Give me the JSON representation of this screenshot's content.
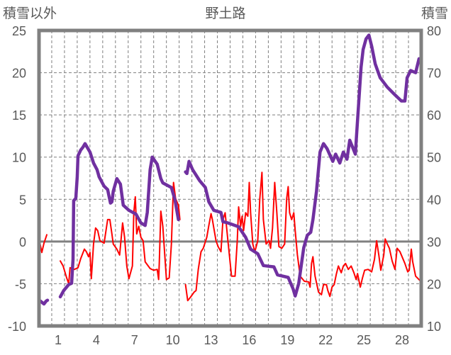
{
  "chart_data": {
    "type": "line",
    "title": "野土路",
    "ylabel": "積雪以外",
    "y2label": "積雪",
    "xlim": [
      -0.5,
      29.5
    ],
    "ylim": [
      -10,
      25
    ],
    "y2lim": [
      10,
      80
    ],
    "grid": true,
    "x_ticks": [
      1,
      4,
      7,
      10,
      13,
      16,
      19,
      22,
      25,
      28
    ],
    "y_ticks": [
      25,
      20,
      15,
      10,
      5,
      0,
      -5,
      -10
    ],
    "y2_ticks": [
      80,
      70,
      60,
      50,
      40,
      30,
      20,
      10
    ],
    "colors": {
      "snow": "#7030a0",
      "other": "#ff0000",
      "axis": "#808080",
      "grid": "#7f7f7f"
    },
    "series": [
      {
        "name": "積雪",
        "axis": "right",
        "segments": [
          [
            [
              -0.39,
              15.9
            ],
            [
              -0.11,
              15.2
            ],
            [
              0.06,
              15.9
            ],
            [
              0.17,
              16.1
            ]
          ],
          [
            [
              1.17,
              16.9
            ],
            [
              1.44,
              18.4
            ],
            [
              1.83,
              19.8
            ],
            [
              2.06,
              20.1
            ],
            [
              2.17,
              25.8
            ],
            [
              2.22,
              39.7
            ],
            [
              2.39,
              40.2
            ],
            [
              2.5,
              45.3
            ],
            [
              2.56,
              50.3
            ],
            [
              2.78,
              51.7
            ],
            [
              2.94,
              52.3
            ],
            [
              3.11,
              53.2
            ],
            [
              3.5,
              51.2
            ],
            [
              3.78,
              48.6
            ],
            [
              4.06,
              47.0
            ],
            [
              4.22,
              45.3
            ],
            [
              4.61,
              43.1
            ],
            [
              4.89,
              42.3
            ],
            [
              5.11,
              39.1
            ],
            [
              5.22,
              39.4
            ],
            [
              5.33,
              41.9
            ],
            [
              5.61,
              44.9
            ],
            [
              5.89,
              43.6
            ],
            [
              6.11,
              38.6
            ],
            [
              6.56,
              37.4
            ],
            [
              7.11,
              36.5
            ],
            [
              7.5,
              34.4
            ],
            [
              7.83,
              33.8
            ],
            [
              8.0,
              36.9
            ],
            [
              8.22,
              47.0
            ],
            [
              8.39,
              50.0
            ],
            [
              8.78,
              48.3
            ],
            [
              9.06,
              44.9
            ],
            [
              9.22,
              43.9
            ],
            [
              9.89,
              42.8
            ],
            [
              10.17,
              39.9
            ],
            [
              10.44,
              35.2
            ]
          ],
          [
            [
              11.0,
              46.5
            ],
            [
              11.11,
              46.1
            ],
            [
              11.28,
              49.0
            ],
            [
              11.56,
              47.0
            ],
            [
              12.11,
              44.4
            ],
            [
              12.56,
              42.8
            ],
            [
              12.83,
              39.4
            ],
            [
              13.22,
              37.4
            ],
            [
              13.78,
              36.9
            ],
            [
              13.94,
              34.7
            ],
            [
              14.33,
              34.4
            ],
            [
              15.17,
              33.5
            ],
            [
              15.72,
              31.0
            ],
            [
              16.11,
              28.2
            ],
            [
              16.67,
              27.1
            ],
            [
              17.11,
              24.3
            ],
            [
              17.94,
              24.0
            ],
            [
              18.22,
              22.1
            ],
            [
              19.06,
              21.5
            ],
            [
              19.44,
              18.8
            ],
            [
              19.61,
              17.1
            ],
            [
              19.89,
              20.1
            ],
            [
              20.28,
              28.5
            ],
            [
              20.56,
              31.5
            ],
            [
              20.83,
              32.2
            ],
            [
              21.0,
              35.2
            ],
            [
              21.28,
              41.9
            ],
            [
              21.56,
              51.2
            ],
            [
              21.83,
              53.2
            ],
            [
              22.11,
              52.0
            ],
            [
              22.56,
              49.0
            ],
            [
              22.78,
              50.7
            ],
            [
              23.11,
              48.6
            ],
            [
              23.39,
              51.2
            ],
            [
              23.67,
              49.5
            ],
            [
              23.89,
              54.0
            ],
            [
              24.33,
              50.7
            ],
            [
              24.5,
              58.7
            ],
            [
              24.78,
              71.3
            ],
            [
              24.94,
              75.5
            ],
            [
              25.17,
              78.0
            ],
            [
              25.39,
              78.9
            ],
            [
              25.61,
              76.3
            ],
            [
              25.89,
              72.1
            ],
            [
              26.28,
              68.8
            ],
            [
              26.83,
              66.6
            ],
            [
              27.39,
              64.9
            ],
            [
              27.94,
              63.3
            ],
            [
              28.22,
              63.3
            ],
            [
              28.39,
              68.8
            ],
            [
              28.67,
              70.5
            ],
            [
              29.06,
              70.0
            ],
            [
              29.33,
              73.3
            ]
          ]
        ]
      },
      {
        "name": "積雪以外",
        "axis": "left",
        "segments": [
          [
            [
              -0.44,
              -0.1
            ],
            [
              -0.28,
              -1.3
            ],
            [
              -0.11,
              -0.2
            ],
            [
              0,
              0.3
            ],
            [
              0.11,
              0.8
            ]
          ],
          [
            [
              1.17,
              -2.3
            ],
            [
              1.39,
              -2.9
            ],
            [
              1.67,
              -4.3
            ],
            [
              1.83,
              -5.0
            ],
            [
              1.94,
              -3.1
            ],
            [
              2.28,
              -3.3
            ],
            [
              2.56,
              -3.1
            ],
            [
              2.78,
              -2.0
            ],
            [
              3.06,
              -0.9
            ],
            [
              3.22,
              -1.2
            ],
            [
              3.39,
              -1.8
            ],
            [
              3.5,
              -1.3
            ],
            [
              3.61,
              -4.4
            ],
            [
              3.78,
              -0.3
            ],
            [
              3.94,
              1.6
            ],
            [
              4.11,
              1.3
            ],
            [
              4.28,
              0.1
            ],
            [
              4.61,
              -0.2
            ],
            [
              4.89,
              2.6
            ],
            [
              5.06,
              2.6
            ],
            [
              5.22,
              0.9
            ],
            [
              5.33,
              -0.3
            ],
            [
              5.61,
              -0.9
            ],
            [
              5.83,
              -1.6
            ],
            [
              6.06,
              2.2
            ],
            [
              6.22,
              0.5
            ],
            [
              6.39,
              -2.9
            ],
            [
              6.56,
              -4.4
            ],
            [
              6.83,
              -2.9
            ],
            [
              6.94,
              3.4
            ],
            [
              7.06,
              5.3
            ],
            [
              7.17,
              0.9
            ],
            [
              7.33,
              1.8
            ],
            [
              7.5,
              0.5
            ],
            [
              7.67,
              0.1
            ],
            [
              7.83,
              -2.4
            ],
            [
              8.22,
              -3.2
            ],
            [
              8.5,
              -3.4
            ],
            [
              8.78,
              -3.3
            ],
            [
              8.89,
              -4.5
            ],
            [
              8.94,
              -2.6
            ],
            [
              9.06,
              3.6
            ],
            [
              9.22,
              1.8
            ],
            [
              9.5,
              -4.5
            ],
            [
              9.72,
              -4.3
            ],
            [
              9.89,
              -0.3
            ],
            [
              10.06,
              7.0
            ],
            [
              10.22,
              5.1
            ],
            [
              10.44,
              4.3
            ],
            [
              10.56,
              2.6
            ]
          ],
          [
            [
              11.0,
              -5.1
            ],
            [
              11.17,
              -7.0
            ],
            [
              11.39,
              -6.6
            ],
            [
              11.67,
              -6.0
            ],
            [
              11.83,
              -5.8
            ],
            [
              12.0,
              -3.3
            ],
            [
              12.22,
              -1.2
            ],
            [
              12.39,
              -0.8
            ],
            [
              12.67,
              0.5
            ],
            [
              12.83,
              1.9
            ],
            [
              13.0,
              3.3
            ],
            [
              13.11,
              2.6
            ],
            [
              13.39,
              0.1
            ],
            [
              13.56,
              -0.6
            ],
            [
              13.78,
              -1.2
            ],
            [
              13.94,
              2.6
            ],
            [
              14.11,
              3.4
            ],
            [
              14.33,
              0.1
            ],
            [
              14.61,
              -4.1
            ],
            [
              14.89,
              -4.1
            ],
            [
              15.06,
              0.1
            ],
            [
              15.17,
              4.1
            ],
            [
              15.33,
              1.8
            ],
            [
              15.44,
              3.0
            ],
            [
              15.56,
              1.3
            ],
            [
              15.72,
              3.4
            ],
            [
              15.89,
              3.0
            ],
            [
              16.0,
              7.0
            ],
            [
              16.11,
              3.4
            ],
            [
              16.28,
              -0.3
            ],
            [
              16.44,
              -1.2
            ],
            [
              16.67,
              0.1
            ],
            [
              16.83,
              5.1
            ],
            [
              17.0,
              8.2
            ],
            [
              17.11,
              2.6
            ],
            [
              17.33,
              -0.3
            ],
            [
              17.56,
              0.1
            ],
            [
              17.67,
              -0.8
            ],
            [
              17.83,
              1.6
            ],
            [
              18.0,
              7.0
            ],
            [
              18.17,
              3.4
            ],
            [
              18.33,
              -0.6
            ],
            [
              18.56,
              -0.8
            ],
            [
              18.78,
              -0.3
            ],
            [
              18.94,
              5.1
            ],
            [
              19.06,
              6.5
            ],
            [
              19.17,
              3.4
            ],
            [
              19.33,
              2.6
            ],
            [
              19.5,
              3.4
            ],
            [
              19.61,
              1.3
            ],
            [
              19.78,
              -1.6
            ],
            [
              20.0,
              -4.1
            ],
            [
              20.33,
              -4.7
            ],
            [
              20.67,
              -4.8
            ],
            [
              20.78,
              -5.4
            ],
            [
              20.89,
              -2.6
            ],
            [
              21.0,
              -1.8
            ],
            [
              21.17,
              -4.1
            ],
            [
              21.44,
              -6.0
            ],
            [
              21.67,
              -6.3
            ],
            [
              21.83,
              -5.1
            ],
            [
              22.06,
              -5.1
            ],
            [
              22.17,
              -5.8
            ],
            [
              22.33,
              -6.5
            ],
            [
              22.5,
              -5.4
            ],
            [
              22.67,
              -5.1
            ],
            [
              22.83,
              -3.9
            ],
            [
              23.0,
              -2.9
            ],
            [
              23.22,
              -3.7
            ],
            [
              23.39,
              -2.9
            ],
            [
              23.56,
              -2.6
            ],
            [
              23.78,
              -3.3
            ],
            [
              24.0,
              -2.9
            ],
            [
              24.22,
              -3.7
            ],
            [
              24.39,
              -4.5
            ],
            [
              24.5,
              -3.8
            ],
            [
              24.72,
              -5.4
            ],
            [
              24.89,
              -4.3
            ],
            [
              25.06,
              -3.4
            ],
            [
              25.33,
              -3.3
            ],
            [
              25.61,
              -3.6
            ],
            [
              25.83,
              -2.1
            ],
            [
              26.0,
              0.1
            ],
            [
              26.17,
              -1.6
            ],
            [
              26.33,
              -3.4
            ],
            [
              26.56,
              -1.6
            ],
            [
              26.67,
              0.3
            ],
            [
              26.78,
              -0.1
            ],
            [
              27.0,
              -0.8
            ],
            [
              27.22,
              -2.3
            ],
            [
              27.44,
              -3.3
            ],
            [
              27.61,
              -0.8
            ],
            [
              27.83,
              -1.2
            ],
            [
              28.0,
              -1.8
            ],
            [
              28.22,
              -2.6
            ],
            [
              28.44,
              -3.6
            ],
            [
              28.56,
              -3.4
            ],
            [
              28.72,
              -0.9
            ],
            [
              28.83,
              -2.4
            ],
            [
              29.06,
              -4.1
            ],
            [
              29.39,
              -4.6
            ]
          ]
        ]
      }
    ]
  }
}
